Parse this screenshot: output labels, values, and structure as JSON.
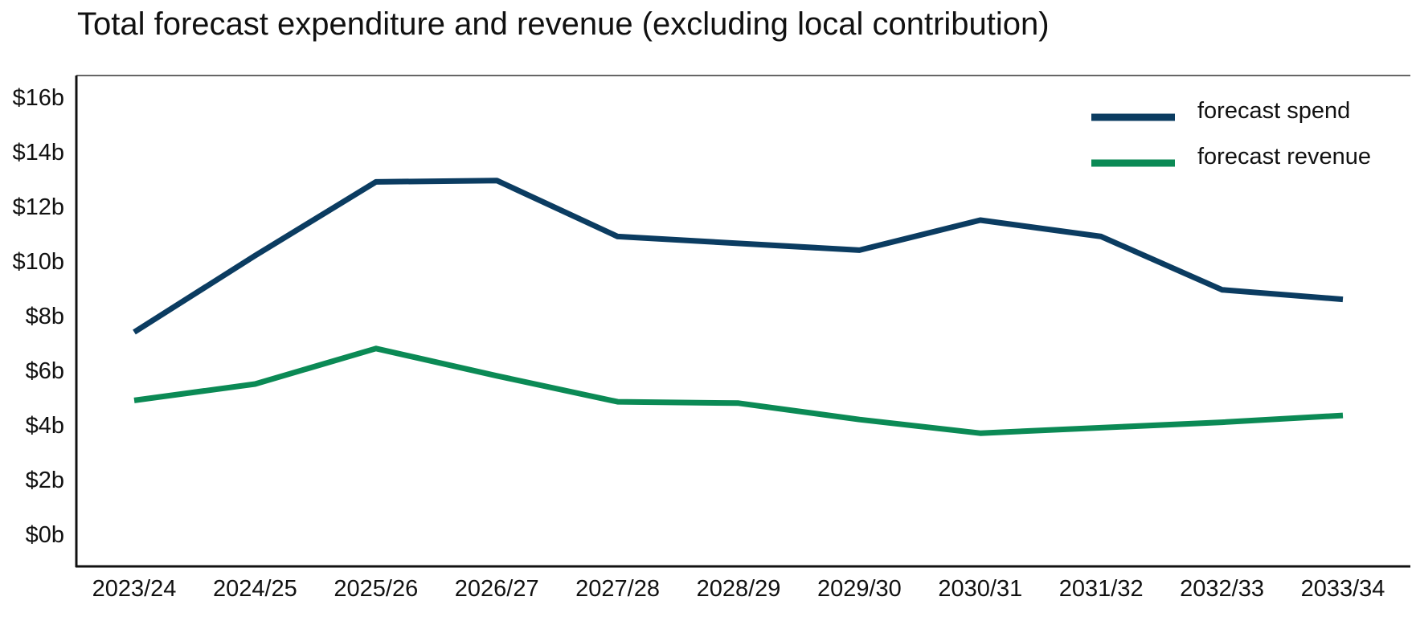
{
  "chart_data": {
    "type": "line",
    "title": "Total forecast expenditure and revenue (excluding local contribution)",
    "xlabel": "",
    "ylabel": "",
    "categories": [
      "2023/24",
      "2024/25",
      "2025/26",
      "2026/27",
      "2027/28",
      "2028/29",
      "2029/30",
      "2030/31",
      "2031/32",
      "2032/33",
      "2033/34"
    ],
    "y_tick_labels": [
      "$0b",
      "$2b",
      "$4b",
      "$6b",
      "$8b",
      "$10b",
      "$12b",
      "$14b",
      "$16b"
    ],
    "y_ticks": [
      0,
      2,
      4,
      6,
      8,
      10,
      12,
      14,
      16
    ],
    "ylim": [
      -1,
      17
    ],
    "grid": false,
    "legend_position": "top-right",
    "series": [
      {
        "name": "forecast spend",
        "color": "#0b3c61",
        "points": [
          {
            "x": 0,
            "y": 7.4
          },
          {
            "x": 1,
            "y": 10.2
          },
          {
            "x": 2,
            "y": 12.9
          },
          {
            "x": 3,
            "y": 12.95
          },
          {
            "x": 4,
            "y": 10.9
          },
          {
            "x": 6,
            "y": 10.4
          },
          {
            "x": 7,
            "y": 11.5
          },
          {
            "x": 8,
            "y": 10.9
          },
          {
            "x": 9,
            "y": 8.95
          },
          {
            "x": 10,
            "y": 8.6
          }
        ]
      },
      {
        "name": "forecast revenue",
        "color": "#0b8a55",
        "points": [
          {
            "x": 0,
            "y": 4.9
          },
          {
            "x": 1,
            "y": 5.5
          },
          {
            "x": 2,
            "y": 6.8
          },
          {
            "x": 3,
            "y": 5.8
          },
          {
            "x": 4,
            "y": 4.85
          },
          {
            "x": 5,
            "y": 4.8
          },
          {
            "x": 6,
            "y": 4.2
          },
          {
            "x": 7,
            "y": 3.7
          },
          {
            "x": 8,
            "y": 3.9
          },
          {
            "x": 9,
            "y": 4.1
          },
          {
            "x": 10,
            "y": 4.35
          }
        ]
      }
    ]
  }
}
